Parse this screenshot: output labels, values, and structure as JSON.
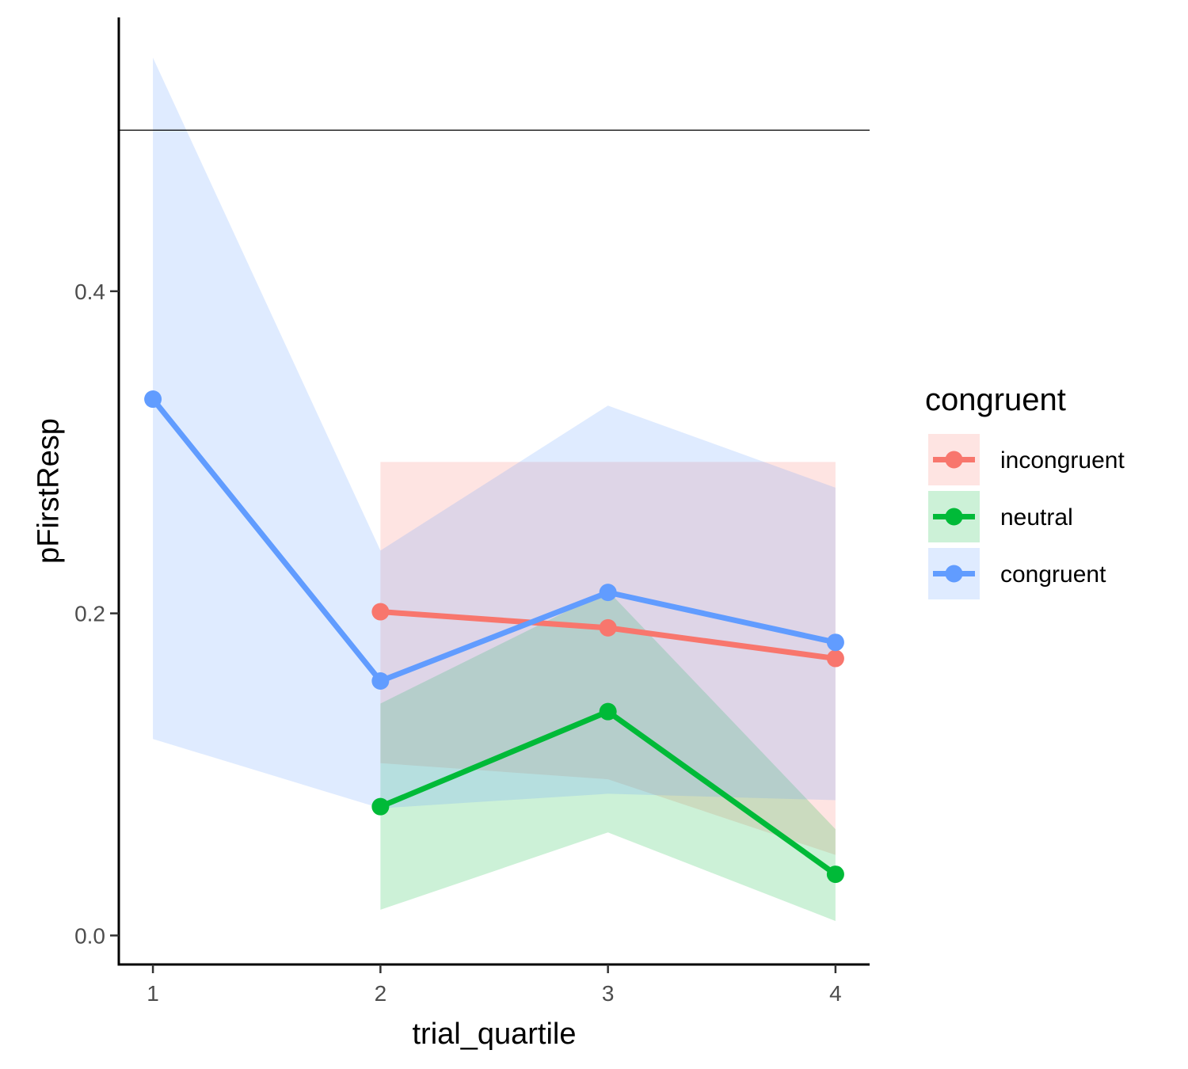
{
  "chart_data": {
    "type": "line",
    "xlabel": "trial_quartile",
    "ylabel": "pFirstResp",
    "x": [
      1,
      2,
      3,
      4
    ],
    "x_ticks": [
      "1",
      "2",
      "3",
      "4"
    ],
    "y_ticks": [
      "0.0",
      "0.2",
      "0.4"
    ],
    "xlim": [
      0.85,
      4.15
    ],
    "ylim": [
      -0.018,
      0.57
    ],
    "reference_line_y": 0.5,
    "grid": false,
    "legend": {
      "title": "congruent",
      "placement": "right"
    },
    "series": [
      {
        "name": "incongruent",
        "color": "#F8766D",
        "x": [
          2,
          3,
          4
        ],
        "values": [
          0.201,
          0.191,
          0.172
        ],
        "lower": [
          0.107,
          0.097,
          0.05
        ],
        "upper": [
          0.294,
          0.294,
          0.294
        ]
      },
      {
        "name": "neutral",
        "color": "#00BA38",
        "x": [
          2,
          3,
          4
        ],
        "values": [
          0.08,
          0.139,
          0.038
        ],
        "lower": [
          0.016,
          0.064,
          0.009
        ],
        "upper": [
          0.144,
          0.214,
          0.066
        ]
      },
      {
        "name": "congruent",
        "color": "#619CFF",
        "x": [
          1,
          2,
          3,
          4
        ],
        "values": [
          0.333,
          0.158,
          0.213,
          0.182
        ],
        "lower": [
          0.122,
          0.079,
          0.088,
          0.084
        ],
        "upper": [
          0.545,
          0.239,
          0.329,
          0.278
        ]
      }
    ]
  }
}
